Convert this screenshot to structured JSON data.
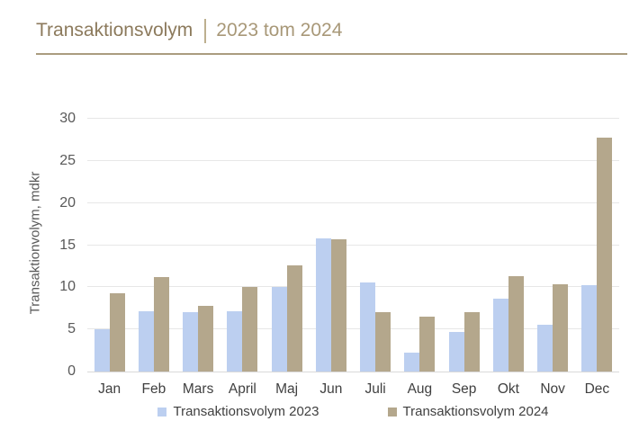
{
  "header": {
    "title": "Transaktionsvolym",
    "subtitle": "2023 tom 2024"
  },
  "chart_data": {
    "type": "bar",
    "title": "Transaktionsvolym | 2023 tom 2024",
    "categories": [
      "Jan",
      "Feb",
      "Mars",
      "April",
      "Maj",
      "Jun",
      "Juli",
      "Aug",
      "Sep",
      "Okt",
      "Nov",
      "Dec"
    ],
    "series": [
      {
        "name": "Transaktionsvolym 2023",
        "color": "#BCCFF0",
        "values": [
          5.0,
          7.2,
          7.0,
          7.2,
          10.0,
          15.8,
          10.6,
          2.2,
          4.7,
          8.7,
          5.6,
          10.3
        ]
      },
      {
        "name": "Transaktionsvolym 2024",
        "color": "#B4A78C",
        "values": [
          9.3,
          11.2,
          7.8,
          10.0,
          12.6,
          15.7,
          7.1,
          6.5,
          7.0,
          11.3,
          10.4,
          27.8
        ]
      }
    ],
    "xlabel": "",
    "ylabel": "Transaktionvolym, mdkr",
    "ylim": [
      0,
      30
    ],
    "yticks": [
      0,
      5,
      10,
      15,
      20,
      25,
      30
    ],
    "grid": true,
    "legend_position": "bottom"
  },
  "colors": {
    "title_main": "#8C7A5C",
    "title_sub": "#A89878",
    "title_rule": "#AA9C7F",
    "gridline": "#E7E7E7",
    "axis_baseline": "#D9D9D9",
    "axis_text": "#595959",
    "label_text": "#404040",
    "series_2023": "#BCCFF0",
    "series_2024": "#B4A78C"
  }
}
